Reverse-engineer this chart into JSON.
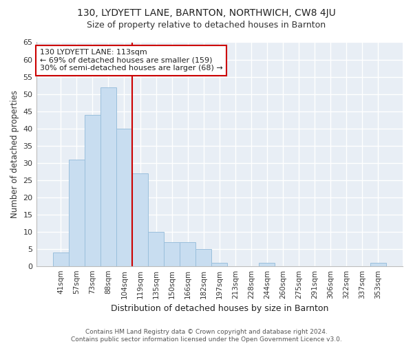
{
  "title1": "130, LYDYETT LANE, BARNTON, NORTHWICH, CW8 4JU",
  "title2": "Size of property relative to detached houses in Barnton",
  "xlabel": "Distribution of detached houses by size in Barnton",
  "ylabel": "Number of detached properties",
  "categories": [
    "41sqm",
    "57sqm",
    "73sqm",
    "88sqm",
    "104sqm",
    "119sqm",
    "135sqm",
    "150sqm",
    "166sqm",
    "182sqm",
    "197sqm",
    "213sqm",
    "228sqm",
    "244sqm",
    "260sqm",
    "275sqm",
    "291sqm",
    "306sqm",
    "322sqm",
    "337sqm",
    "353sqm"
  ],
  "values": [
    4,
    31,
    44,
    52,
    40,
    27,
    10,
    7,
    7,
    5,
    1,
    0,
    0,
    1,
    0,
    0,
    0,
    0,
    0,
    0,
    1
  ],
  "bar_color": "#c8ddf0",
  "bar_edge_color": "#9abfdc",
  "vline_x_index": 5,
  "vline_color": "#cc0000",
  "annotation_text": "130 LYDYETT LANE: 113sqm\n← 69% of detached houses are smaller (159)\n30% of semi-detached houses are larger (68) →",
  "annotation_box_color": "#ffffff",
  "annotation_box_edge": "#cc0000",
  "ylim": [
    0,
    65
  ],
  "yticks": [
    0,
    5,
    10,
    15,
    20,
    25,
    30,
    35,
    40,
    45,
    50,
    55,
    60,
    65
  ],
  "footer1": "Contains HM Land Registry data © Crown copyright and database right 2024.",
  "footer2": "Contains public sector information licensed under the Open Government Licence v3.0.",
  "fig_bg_color": "#ffffff",
  "plot_bg_color": "#e8eef5",
  "grid_color": "#ffffff"
}
